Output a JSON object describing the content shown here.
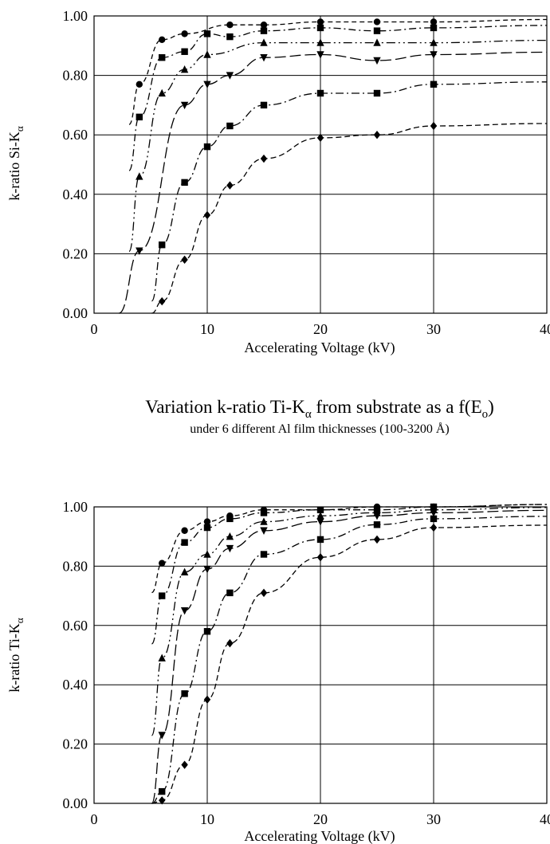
{
  "header": {
    "title_main": "Variation k-ratio Ti-K",
    "title_main_sub": "α",
    "title_main_tail": " from substrate as a f(E",
    "title_main_tail_sub": "o",
    "title_main_end": ")",
    "subtitle": "under 6 different Al film thicknesses (100-3200 Å)"
  },
  "chart_data": [
    {
      "type": "scatter",
      "ylabel": "k-ratio Si-K",
      "ylabel_sub": "α",
      "xlabel": "Accelerating Voltage (kV)",
      "xlim": [
        0,
        40
      ],
      "ylim": [
        0,
        1
      ],
      "xticks": [
        "0",
        "10",
        "20",
        "30",
        "40"
      ],
      "yticks": [
        "0.00",
        "0.20",
        "0.40",
        "0.60",
        "0.80",
        "1.00"
      ],
      "grid": true,
      "series": [
        {
          "marker": "circle",
          "x": [
            4,
            6,
            8,
            12,
            15,
            20,
            25,
            30
          ],
          "y": [
            0.77,
            0.92,
            0.94,
            0.97,
            0.97,
            0.98,
            0.98,
            0.98
          ]
        },
        {
          "marker": "square",
          "x": [
            4,
            6,
            8,
            10,
            12,
            15,
            20,
            25,
            30
          ],
          "y": [
            0.66,
            0.86,
            0.88,
            0.94,
            0.93,
            0.95,
            0.96,
            0.95,
            0.96
          ]
        },
        {
          "marker": "triangle-up",
          "x": [
            4,
            6,
            8,
            10,
            15,
            20,
            25,
            30
          ],
          "y": [
            0.46,
            0.74,
            0.82,
            0.87,
            0.91,
            0.91,
            0.91,
            0.91
          ]
        },
        {
          "marker": "triangle-down",
          "x": [
            4,
            8,
            10,
            12,
            15,
            20,
            25,
            30
          ],
          "y": [
            0.21,
            0.7,
            0.77,
            0.8,
            0.86,
            0.87,
            0.85,
            0.87
          ]
        },
        {
          "marker": "square",
          "x": [
            6,
            8,
            10,
            12,
            15,
            20,
            25,
            30
          ],
          "y": [
            0.23,
            0.44,
            0.56,
            0.63,
            0.7,
            0.74,
            0.74,
            0.77
          ]
        },
        {
          "marker": "diamond",
          "x": [
            6,
            8,
            10,
            12,
            15,
            20,
            25,
            30
          ],
          "y": [
            0.04,
            0.18,
            0.33,
            0.43,
            0.52,
            0.59,
            0.6,
            0.63
          ]
        }
      ]
    },
    {
      "type": "scatter",
      "ylabel": "k-ratio Ti-K",
      "ylabel_sub": "α",
      "xlabel": "Accelerating Voltage (kV)",
      "xlim": [
        0,
        40
      ],
      "ylim": [
        0,
        1
      ],
      "xticks": [
        "0",
        "10",
        "20",
        "30",
        "40"
      ],
      "yticks": [
        "0.00",
        "0.20",
        "0.40",
        "0.60",
        "0.80",
        "1.00"
      ],
      "grid": true,
      "series": [
        {
          "marker": "circle",
          "x": [
            6,
            8,
            10,
            12,
            15,
            20,
            25,
            30
          ],
          "y": [
            0.81,
            0.92,
            0.95,
            0.97,
            0.99,
            0.99,
            1.0,
            1.0
          ]
        },
        {
          "marker": "square",
          "x": [
            6,
            8,
            10,
            12,
            15,
            20,
            25,
            30
          ],
          "y": [
            0.7,
            0.88,
            0.93,
            0.96,
            0.98,
            0.99,
            0.99,
            1.0
          ]
        },
        {
          "marker": "triangle-up",
          "x": [
            6,
            8,
            10,
            12,
            15,
            20,
            25,
            30
          ],
          "y": [
            0.49,
            0.78,
            0.84,
            0.9,
            0.95,
            0.97,
            0.98,
            0.99
          ]
        },
        {
          "marker": "triangle-down",
          "x": [
            6,
            8,
            10,
            12,
            15,
            20,
            25,
            30
          ],
          "y": [
            0.23,
            0.65,
            0.79,
            0.86,
            0.92,
            0.95,
            0.97,
            0.98
          ]
        },
        {
          "marker": "square",
          "x": [
            6,
            8,
            10,
            12,
            15,
            20,
            25,
            30
          ],
          "y": [
            0.04,
            0.37,
            0.58,
            0.71,
            0.84,
            0.89,
            0.94,
            0.96
          ]
        },
        {
          "marker": "diamond",
          "x": [
            6,
            8,
            10,
            12,
            15,
            20,
            25,
            30
          ],
          "y": [
            0.01,
            0.13,
            0.35,
            0.54,
            0.71,
            0.83,
            0.89,
            0.93
          ]
        }
      ]
    }
  ]
}
